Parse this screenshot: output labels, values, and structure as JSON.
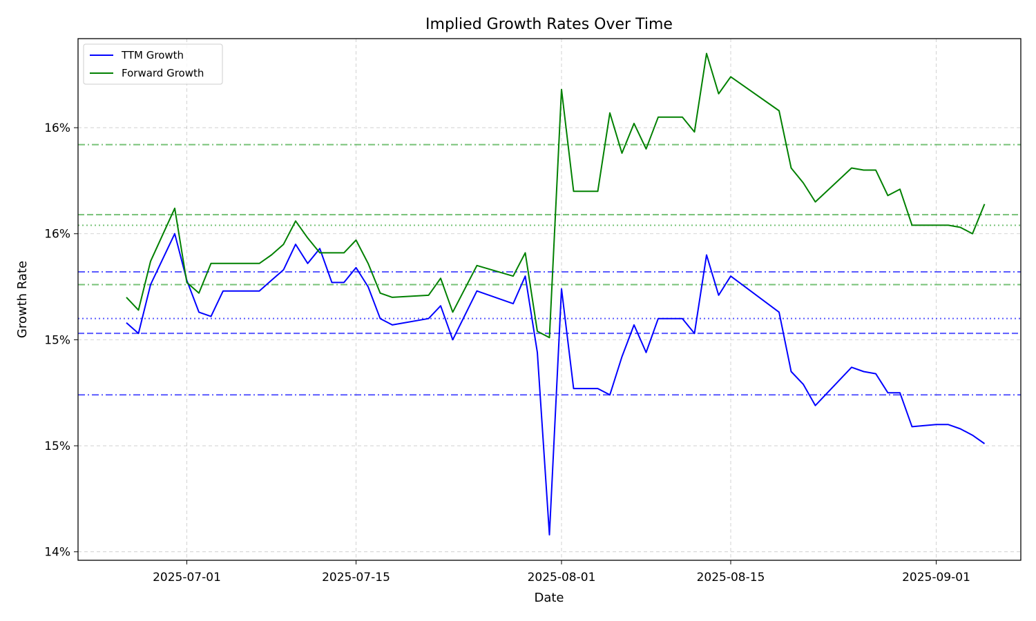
{
  "chart_data": {
    "type": "line",
    "title": "Implied Growth Rates Over Time",
    "xlabel": "Date",
    "ylabel": "Growth Rate",
    "xlim": [
      "2025-06-22",
      "2025-09-08"
    ],
    "ylim": [
      13.96,
      16.42
    ],
    "grid": true,
    "legend_position": "top-left",
    "x_ticks": [
      {
        "date": "2025-07-01",
        "label": "2025-07-01"
      },
      {
        "date": "2025-07-15",
        "label": "2025-07-15"
      },
      {
        "date": "2025-08-01",
        "label": "2025-08-01"
      },
      {
        "date": "2025-08-15",
        "label": "2025-08-15"
      },
      {
        "date": "2025-09-01",
        "label": "2025-09-01"
      }
    ],
    "y_ticks": [
      {
        "value": 14.0,
        "label": "14%"
      },
      {
        "value": 14.5,
        "label": "15%"
      },
      {
        "value": 15.0,
        "label": "15%"
      },
      {
        "value": 15.5,
        "label": "16%"
      },
      {
        "value": 16.0,
        "label": "16%"
      }
    ],
    "x": [
      "2025-06-26",
      "2025-06-27",
      "2025-06-28",
      "2025-06-30",
      "2025-07-01",
      "2025-07-02",
      "2025-07-03",
      "2025-07-04",
      "2025-07-07",
      "2025-07-08",
      "2025-07-09",
      "2025-07-10",
      "2025-07-11",
      "2025-07-12",
      "2025-07-13",
      "2025-07-14",
      "2025-07-15",
      "2025-07-16",
      "2025-07-17",
      "2025-07-18",
      "2025-07-21",
      "2025-07-22",
      "2025-07-23",
      "2025-07-25",
      "2025-07-28",
      "2025-07-29",
      "2025-07-30",
      "2025-07-31",
      "2025-08-01",
      "2025-08-02",
      "2025-08-04",
      "2025-08-05",
      "2025-08-06",
      "2025-08-07",
      "2025-08-08",
      "2025-08-09",
      "2025-08-11",
      "2025-08-12",
      "2025-08-13",
      "2025-08-14",
      "2025-08-15",
      "2025-08-19",
      "2025-08-20",
      "2025-08-21",
      "2025-08-22",
      "2025-08-25",
      "2025-08-26",
      "2025-08-27",
      "2025-08-28",
      "2025-08-29",
      "2025-08-30",
      "2025-09-01",
      "2025-09-02",
      "2025-09-03",
      "2025-09-04",
      "2025-09-05"
    ],
    "series": [
      {
        "name": "TTM Growth",
        "color": "#0000ff",
        "values": [
          15.08,
          15.03,
          15.26,
          15.5,
          15.28,
          15.13,
          15.11,
          15.23,
          15.23,
          15.28,
          15.33,
          15.45,
          15.36,
          15.43,
          15.27,
          15.27,
          15.34,
          15.25,
          15.1,
          15.07,
          15.1,
          15.16,
          15.0,
          15.23,
          15.17,
          15.3,
          14.94,
          14.08,
          15.24,
          14.77,
          14.77,
          14.74,
          14.92,
          15.07,
          14.94,
          15.1,
          15.1,
          15.03,
          15.4,
          15.21,
          15.3,
          15.13,
          14.85,
          14.79,
          14.69,
          14.87,
          14.85,
          14.84,
          14.75,
          14.75,
          14.59,
          14.6,
          14.6,
          14.58,
          14.55,
          14.51
        ]
      },
      {
        "name": "Forward Growth",
        "color": "#008000",
        "values": [
          15.2,
          15.14,
          15.37,
          15.62,
          15.27,
          15.22,
          15.36,
          15.36,
          15.36,
          15.4,
          15.45,
          15.56,
          15.48,
          15.41,
          15.41,
          15.41,
          15.47,
          15.36,
          15.22,
          15.2,
          15.21,
          15.29,
          15.13,
          15.35,
          15.3,
          15.41,
          15.04,
          15.01,
          16.18,
          15.7,
          15.7,
          16.07,
          15.88,
          16.02,
          15.9,
          16.05,
          16.05,
          15.98,
          16.35,
          16.16,
          16.24,
          16.08,
          15.81,
          15.74,
          15.65,
          15.81,
          15.8,
          15.8,
          15.68,
          15.71,
          15.54,
          15.54,
          15.54,
          15.53,
          15.5,
          15.64
        ]
      }
    ],
    "reference_lines": [
      {
        "value": 15.92,
        "color": "#2ca02c",
        "style": "dashdot"
      },
      {
        "value": 15.59,
        "color": "#2ca02c",
        "style": "dashed"
      },
      {
        "value": 15.54,
        "color": "#2ca02c",
        "style": "dotted"
      },
      {
        "value": 15.32,
        "color": "#0000ff",
        "style": "dashdot"
      },
      {
        "value": 15.26,
        "color": "#2ca02c",
        "style": "dashdot"
      },
      {
        "value": 15.1,
        "color": "#0000ff",
        "style": "dotted"
      },
      {
        "value": 15.03,
        "color": "#0000ff",
        "style": "dashed"
      },
      {
        "value": 14.74,
        "color": "#0000ff",
        "style": "dashdot"
      }
    ]
  }
}
